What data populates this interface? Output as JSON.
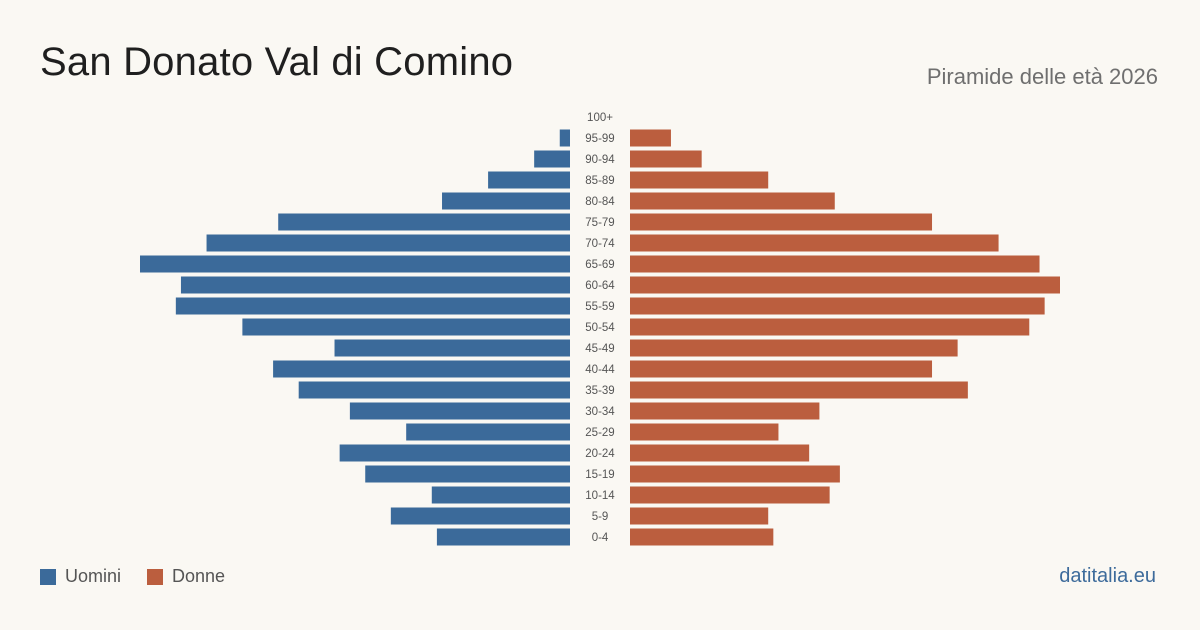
{
  "header": {
    "title": "San Donato Val di Comino",
    "subtitle": "Piramide delle età 2026"
  },
  "legend": {
    "men_label": "Uomini",
    "women_label": "Donne"
  },
  "footer": {
    "brand": "datitalia.eu"
  },
  "colors": {
    "men": "#3b6a9a",
    "women": "#bb5e3e",
    "background": "#faf8f3"
  },
  "chart_data": {
    "type": "bar",
    "orientation": "horizontal-pyramid",
    "title": "San Donato Val di Comino",
    "subtitle": "Piramide delle età 2026",
    "categories": [
      "100+",
      "95-99",
      "90-94",
      "85-89",
      "80-84",
      "75-79",
      "70-74",
      "65-69",
      "60-64",
      "55-59",
      "50-54",
      "45-49",
      "40-44",
      "35-39",
      "30-34",
      "25-29",
      "20-24",
      "15-19",
      "10-14",
      "5-9",
      "0-4"
    ],
    "series": [
      {
        "name": "Uomini",
        "values": [
          0,
          2,
          7,
          16,
          25,
          57,
          71,
          84,
          76,
          77,
          64,
          46,
          58,
          53,
          43,
          32,
          45,
          40,
          27,
          35,
          26
        ]
      },
      {
        "name": "Donne",
        "values": [
          0,
          8,
          14,
          27,
          40,
          59,
          72,
          80,
          84,
          81,
          78,
          64,
          59,
          66,
          37,
          29,
          35,
          41,
          39,
          27,
          28
        ]
      }
    ],
    "xlim": [
      0,
      84
    ],
    "grid": false,
    "legend_position": "bottom-left"
  }
}
